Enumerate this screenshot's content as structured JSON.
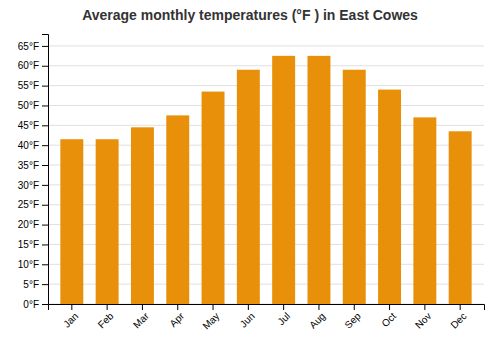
{
  "chart_data": {
    "type": "bar",
    "title": "Average monthly temperatures (°F ) in East Cowes",
    "categories": [
      "Jan",
      "Feb",
      "Mar",
      "Apr",
      "May",
      "Jun",
      "Jul",
      "Aug",
      "Sep",
      "Oct",
      "Nov",
      "Dec"
    ],
    "values": [
      41.5,
      41.5,
      44.5,
      47.5,
      53.5,
      59.0,
      62.5,
      62.5,
      59.0,
      54.0,
      47.0,
      43.5
    ],
    "color": "#E8900A",
    "ylim": [
      0,
      68
    ],
    "yticks": [
      {
        "value": 0,
        "label": "0°F"
      },
      {
        "value": 5,
        "label": "5°F"
      },
      {
        "value": 10,
        "label": "10°F"
      },
      {
        "value": 15,
        "label": "15°F"
      },
      {
        "value": 20,
        "label": "20°F"
      },
      {
        "value": 25,
        "label": "25°F"
      },
      {
        "value": 30,
        "label": "30°F"
      },
      {
        "value": 35,
        "label": "35°F"
      },
      {
        "value": 40,
        "label": "40°F"
      },
      {
        "value": 45,
        "label": "45°F"
      },
      {
        "value": 50,
        "label": "50°F"
      },
      {
        "value": 55,
        "label": "55°F"
      },
      {
        "value": 60,
        "label": "60°F"
      },
      {
        "value": 65,
        "label": "65°F"
      }
    ],
    "grid": true
  }
}
